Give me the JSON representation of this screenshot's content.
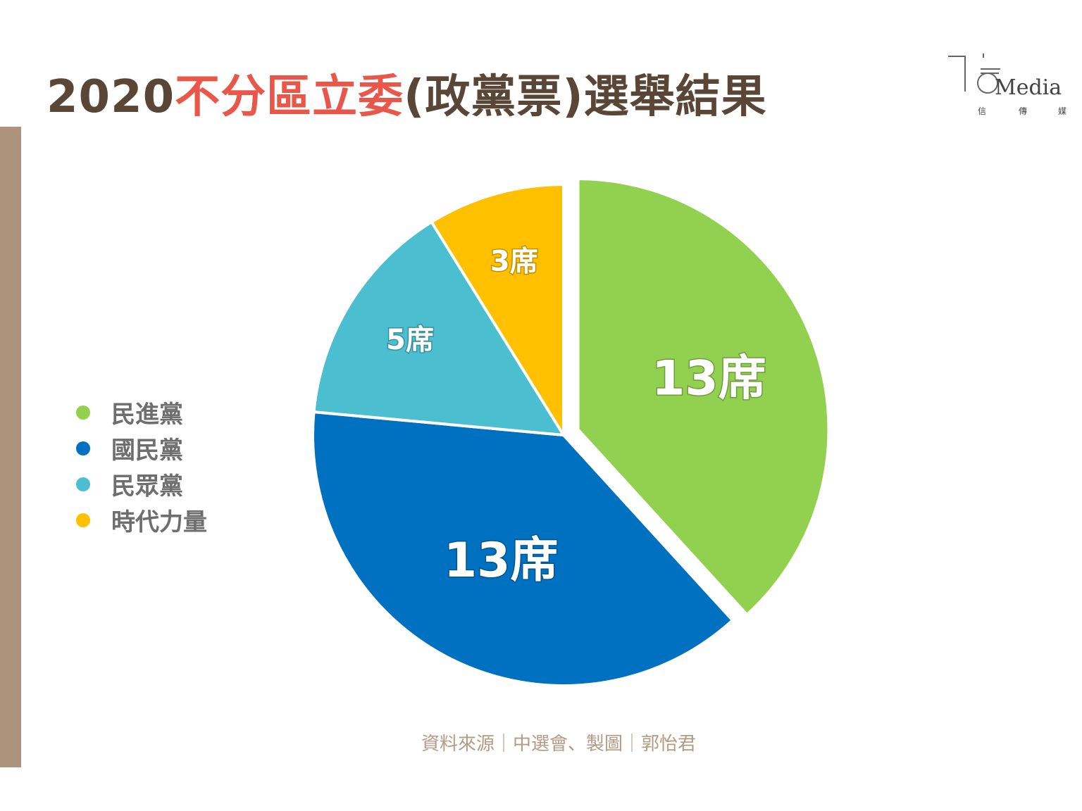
{
  "title": {
    "year": "2020",
    "highlight": "不分區立委",
    "rest": "(政黨票)選舉結果"
  },
  "logo": {
    "text": "Media",
    "sub": [
      "信",
      "傳",
      "媒"
    ]
  },
  "source": "資料來源｜中選會、製圖｜郭怡君",
  "colors": {
    "title": "#5a4636",
    "highlight": "#e8574a",
    "bar": "#ad937c",
    "source": "#b49a82"
  },
  "chart_data": {
    "type": "pie",
    "title": "2020不分區立委(政黨票)選舉結果",
    "unit": "席",
    "legend_position": "left",
    "slices": [
      {
        "name": "民進黨",
        "value": 13,
        "label": "13席",
        "color": "#92d050",
        "exploded": true
      },
      {
        "name": "國民黨",
        "value": 13,
        "label": "13席",
        "color": "#0070c0",
        "exploded": false
      },
      {
        "name": "民眾黨",
        "value": 5,
        "label": "5席",
        "color": "#4bbfd0",
        "exploded": false
      },
      {
        "name": "時代力量",
        "value": 3,
        "label": "3席",
        "color": "#ffc000",
        "exploded": false
      }
    ]
  }
}
